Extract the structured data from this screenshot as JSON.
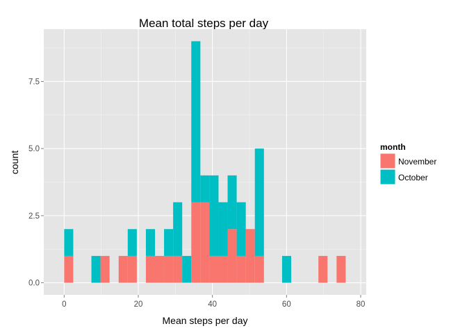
{
  "chart_data": {
    "type": "bar",
    "stacked": true,
    "title": "Mean total steps per day",
    "xlabel": "Mean steps per day",
    "ylabel": "count",
    "xlim": [
      -5.5,
      81.5
    ],
    "ylim": [
      -0.45,
      9.45
    ],
    "xticks": [
      0,
      20,
      40,
      60,
      80
    ],
    "yticks": [
      0.0,
      2.5,
      5.0,
      7.5
    ],
    "ytick_labels": [
      "0.0",
      "2.5",
      "5.0",
      "7.5"
    ],
    "grid": true,
    "bin_width": 2.45,
    "legend": {
      "title": "month",
      "position": "right",
      "entries": [
        {
          "label": "November",
          "color": "#F8766D"
        },
        {
          "label": "October",
          "color": "#00BFC4"
        }
      ]
    },
    "bin_starts": [
      0,
      7.35,
      9.8,
      14.7,
      17.15,
      22.05,
      24.5,
      26.95,
      29.4,
      31.85,
      34.3,
      36.75,
      39.2,
      41.65,
      44.1,
      46.55,
      49.0,
      51.45,
      58.8,
      68.6,
      73.5
    ],
    "series": [
      {
        "name": "November",
        "color": "#F8766D",
        "values": [
          1,
          0,
          1,
          1,
          1,
          1,
          1,
          1,
          1,
          0,
          3,
          3,
          1,
          1,
          2,
          1,
          2,
          1,
          0,
          1,
          1
        ]
      },
      {
        "name": "October",
        "color": "#00BFC4",
        "values": [
          1,
          1,
          0,
          0,
          1,
          1,
          0,
          1,
          2,
          1,
          6,
          1,
          3,
          2,
          2,
          2,
          0,
          4,
          1,
          0,
          0
        ]
      }
    ]
  }
}
